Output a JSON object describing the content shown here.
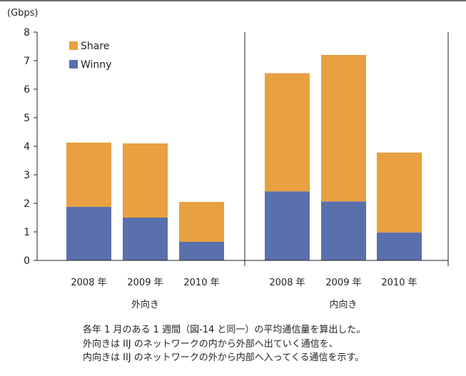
{
  "chart_data": {
    "type": "bar",
    "stacked": true,
    "unit_label": "(Gbps)",
    "ylim": [
      0,
      8
    ],
    "yticks": [
      0,
      1,
      2,
      3,
      4,
      5,
      6,
      7,
      8
    ],
    "legend": {
      "placement": "top-left",
      "order": [
        "Share",
        "Winny"
      ]
    },
    "colors": {
      "Share": "#e8a041",
      "Winny": "#5a70ad"
    },
    "groups": [
      {
        "label": "外向き",
        "categories": [
          "2008 年",
          "2009 年",
          "2010 年"
        ],
        "series": [
          {
            "name": "Winny",
            "values": [
              1.88,
              1.5,
              0.65
            ]
          },
          {
            "name": "Share",
            "values": [
              2.25,
              2.6,
              1.4
            ]
          }
        ]
      },
      {
        "label": "内向き",
        "categories": [
          "2008 年",
          "2009 年",
          "2010 年"
        ],
        "series": [
          {
            "name": "Winny",
            "values": [
              2.42,
              2.07,
              0.98
            ]
          },
          {
            "name": "Share",
            "values": [
              4.14,
              5.13,
              2.8
            ]
          }
        ]
      }
    ]
  },
  "caption": {
    "lines": [
      "各年 1 月のある 1 週間（図-14 と同一）の平均通信量を算出した。",
      "外向きは IIJ のネットワークの内から外部へ出ていく通信を、",
      "内向きは IIJ のネットワークの外から内部へ入ってくる通信を示す。"
    ]
  }
}
